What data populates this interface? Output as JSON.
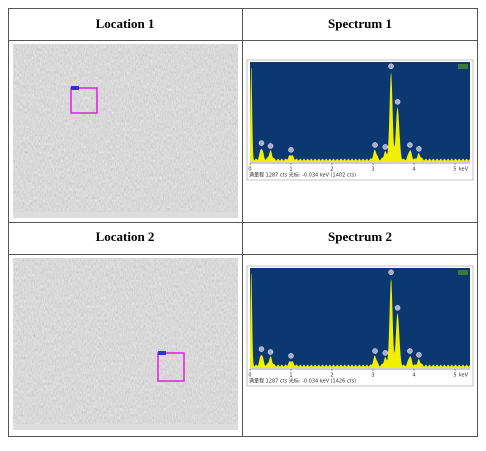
{
  "table": {
    "rows": [
      {
        "left": "Location 1",
        "right": "Spectrum 1"
      },
      {
        "left": "Location 2",
        "right": "Spectrum 2"
      }
    ]
  },
  "spectra": [
    {
      "status": "满量程 1287 cts 光标: -0.034 keV (1402 cts)",
      "ticks": [
        0,
        1,
        2,
        3,
        4,
        5
      ],
      "unit": "keV"
    },
    {
      "status": "满量程 1287 cts 光标: -0.034 keV (1426 cts)",
      "ticks": [
        0,
        1,
        2,
        3,
        4,
        5
      ],
      "unit": "keV"
    }
  ]
}
